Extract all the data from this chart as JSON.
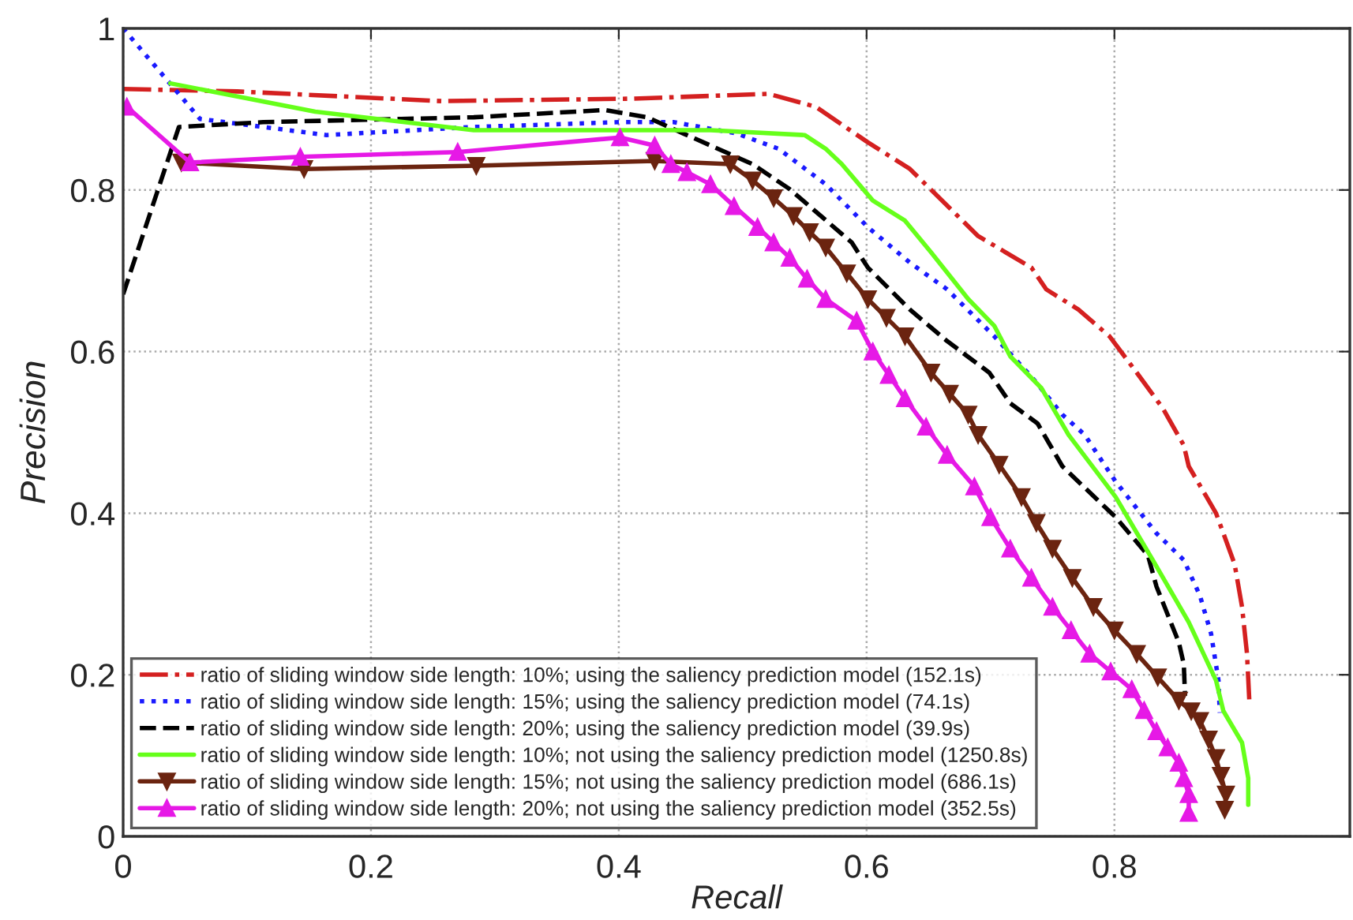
{
  "chart_data": {
    "type": "line",
    "xlabel": "Recall",
    "ylabel": "Precision",
    "xlim": [
      0,
      0.99
    ],
    "ylim": [
      0,
      1
    ],
    "xticks": [
      0,
      0.2,
      0.4,
      0.6,
      0.8
    ],
    "yticks": [
      0,
      0.2,
      0.4,
      0.6,
      0.8,
      1
    ],
    "grid": true,
    "legend": "bottom left",
    "series": [
      {
        "name": "ratio of sliding window side length: 10%; using the saliency prediction model (152.1s)",
        "color": "#d42020",
        "line_style": "dashdot",
        "marker": "none",
        "x": [
          0,
          0.092,
          0.257,
          0.41,
          0.521,
          0.559,
          0.601,
          0.635,
          0.69,
          0.733,
          0.745,
          0.771,
          0.796,
          0.818,
          0.839,
          0.856,
          0.86,
          0.882,
          0.897,
          0.903,
          0.907,
          0.909
        ],
        "values": [
          0.925,
          0.922,
          0.91,
          0.913,
          0.919,
          0.903,
          0.859,
          0.826,
          0.743,
          0.704,
          0.677,
          0.652,
          0.619,
          0.574,
          0.53,
          0.484,
          0.458,
          0.4,
          0.337,
          0.284,
          0.226,
          0.164
        ]
      },
      {
        "name": "ratio of sliding window side length: 15%; using the saliency prediction model (74.1s)",
        "color": "#1a1aff",
        "line_style": "dotted",
        "marker": "none",
        "x": [
          0,
          0.062,
          0.164,
          0.283,
          0.401,
          0.444,
          0.495,
          0.529,
          0.567,
          0.601,
          0.635,
          0.665,
          0.703,
          0.733,
          0.758,
          0.776,
          0.801,
          0.834,
          0.856,
          0.869,
          0.878,
          0.884,
          0.885
        ],
        "values": [
          1.0,
          0.888,
          0.868,
          0.878,
          0.884,
          0.884,
          0.87,
          0.851,
          0.807,
          0.754,
          0.71,
          0.677,
          0.619,
          0.569,
          0.522,
          0.497,
          0.439,
          0.375,
          0.342,
          0.298,
          0.251,
          0.193,
          0.153
        ]
      },
      {
        "name": "ratio of sliding window side length: 20%; using the saliency prediction model (39.9s)",
        "color": "#000000",
        "line_style": "dashed",
        "marker": "none",
        "x": [
          0,
          0.045,
          0.113,
          0.283,
          0.389,
          0.423,
          0.452,
          0.508,
          0.538,
          0.588,
          0.601,
          0.635,
          0.665,
          0.699,
          0.716,
          0.738,
          0.758,
          0.801,
          0.827,
          0.834,
          0.852,
          0.856,
          0.857
        ],
        "values": [
          0.671,
          0.878,
          0.884,
          0.89,
          0.899,
          0.89,
          0.87,
          0.832,
          0.801,
          0.735,
          0.704,
          0.652,
          0.613,
          0.574,
          0.536,
          0.511,
          0.458,
          0.395,
          0.348,
          0.309,
          0.24,
          0.213,
          0.174
        ]
      },
      {
        "name": "ratio of sliding window side length: 10%; not using the saliency prediction model (1250.8s)",
        "color": "#66ff1a",
        "line_style": "solid",
        "marker": "none",
        "x": [
          0.038,
          0.155,
          0.283,
          0.474,
          0.55,
          0.567,
          0.58,
          0.605,
          0.631,
          0.652,
          0.682,
          0.703,
          0.716,
          0.741,
          0.763,
          0.801,
          0.831,
          0.86,
          0.882,
          0.888,
          0.903,
          0.908,
          0.908
        ],
        "values": [
          0.932,
          0.897,
          0.874,
          0.874,
          0.868,
          0.851,
          0.832,
          0.787,
          0.762,
          0.723,
          0.665,
          0.632,
          0.594,
          0.555,
          0.497,
          0.42,
          0.342,
          0.265,
          0.193,
          0.155,
          0.116,
          0.072,
          0.039
        ]
      },
      {
        "name": "ratio of sliding window side length: 15%; not using the saliency prediction model (686.1s)",
        "color": "#6b2410",
        "line_style": "solid",
        "marker": "triangle_down",
        "x": [
          0.047,
          0.146,
          0.285,
          0.429,
          0.49,
          0.508,
          0.525,
          0.541,
          0.554,
          0.567,
          0.584,
          0.601,
          0.616,
          0.631,
          0.652,
          0.667,
          0.682,
          0.69,
          0.707,
          0.725,
          0.737,
          0.75,
          0.766,
          0.783,
          0.8,
          0.818,
          0.835,
          0.852,
          0.862,
          0.869,
          0.876,
          0.882,
          0.886,
          0.89,
          0.889
        ],
        "values": [
          0.834,
          0.826,
          0.83,
          0.836,
          0.832,
          0.812,
          0.79,
          0.768,
          0.748,
          0.729,
          0.697,
          0.665,
          0.642,
          0.619,
          0.574,
          0.548,
          0.522,
          0.497,
          0.46,
          0.42,
          0.388,
          0.356,
          0.32,
          0.284,
          0.255,
          0.226,
          0.197,
          0.168,
          0.155,
          0.143,
          0.12,
          0.097,
          0.075,
          0.052,
          0.033
        ]
      },
      {
        "name": "ratio of sliding window side length: 20%; not using the saliency prediction model (352.5s)",
        "color": "#e619e6",
        "line_style": "solid",
        "marker": "triangle",
        "x": [
          0.003,
          0.054,
          0.143,
          0.27,
          0.401,
          0.429,
          0.442,
          0.455,
          0.474,
          0.493,
          0.512,
          0.525,
          0.538,
          0.552,
          0.567,
          0.592,
          0.605,
          0.618,
          0.631,
          0.648,
          0.665,
          0.687,
          0.7,
          0.716,
          0.733,
          0.75,
          0.765,
          0.78,
          0.797,
          0.814,
          0.824,
          0.834,
          0.843,
          0.852,
          0.856,
          0.86,
          0.86
        ],
        "values": [
          0.903,
          0.834,
          0.841,
          0.847,
          0.865,
          0.855,
          0.832,
          0.822,
          0.807,
          0.78,
          0.754,
          0.735,
          0.716,
          0.69,
          0.665,
          0.638,
          0.6,
          0.571,
          0.542,
          0.507,
          0.472,
          0.433,
          0.395,
          0.356,
          0.32,
          0.284,
          0.255,
          0.226,
          0.204,
          0.182,
          0.156,
          0.13,
          0.11,
          0.091,
          0.072,
          0.052,
          0.029
        ]
      }
    ]
  }
}
